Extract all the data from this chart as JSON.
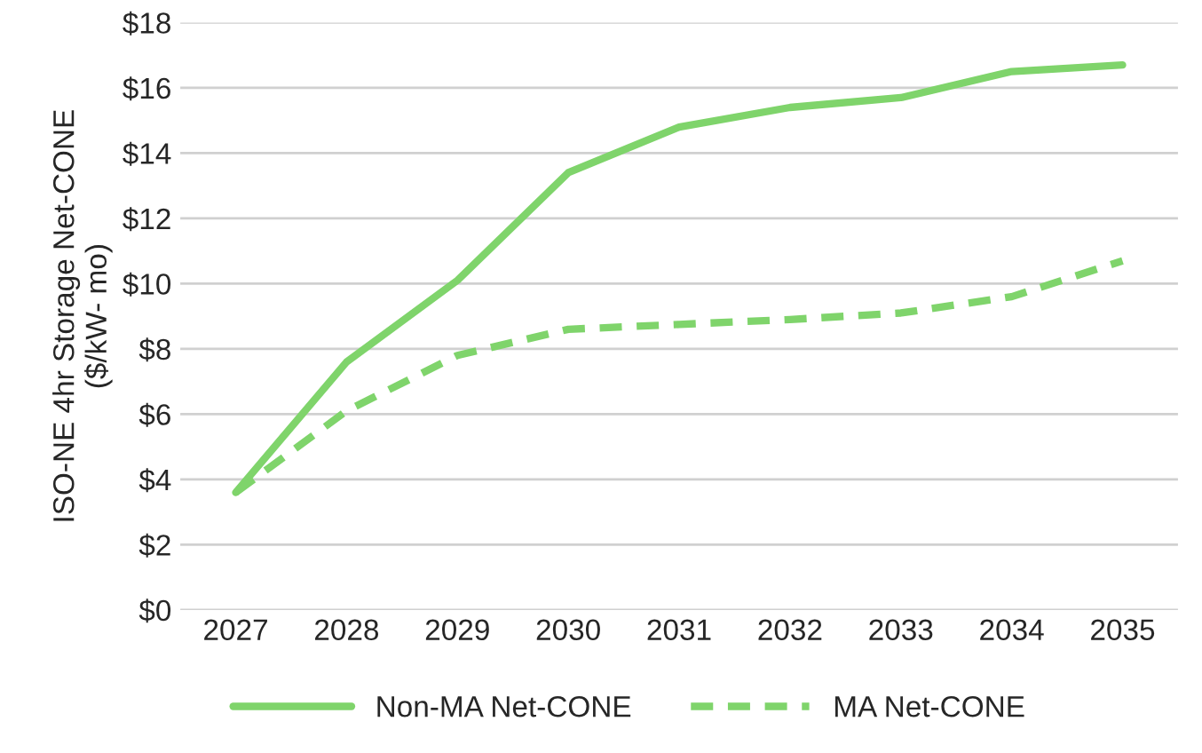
{
  "chart_data": {
    "type": "line",
    "ylabel": "ISO-NE 4hr Storage Net-CONE\n($/kW- mo)",
    "categories": [
      "2027",
      "2028",
      "2029",
      "2030",
      "2031",
      "2032",
      "2033",
      "2034",
      "2035"
    ],
    "series": [
      {
        "name": "Non-MA Net-CONE",
        "color": "#7fd46b",
        "line_style": "solid",
        "values": [
          3.6,
          7.6,
          10.1,
          13.4,
          14.8,
          15.4,
          15.7,
          16.5,
          16.7
        ]
      },
      {
        "name": "MA Net-CONE",
        "color": "#7fd46b",
        "line_style": "dashed",
        "values": [
          3.6,
          6.1,
          7.8,
          8.6,
          8.75,
          8.9,
          9.1,
          9.6,
          10.7
        ]
      }
    ],
    "ylim": [
      0,
      18
    ],
    "yticks": [
      {
        "value": 0,
        "label": "$0"
      },
      {
        "value": 2,
        "label": "$2"
      },
      {
        "value": 4,
        "label": "$4"
      },
      {
        "value": 6,
        "label": "$6"
      },
      {
        "value": 8,
        "label": "$8"
      },
      {
        "value": 10,
        "label": "$10"
      },
      {
        "value": 12,
        "label": "$12"
      },
      {
        "value": 14,
        "label": "$14"
      },
      {
        "value": 16,
        "label": "$16"
      },
      {
        "value": 18,
        "label": "$18"
      }
    ],
    "grid": "y",
    "legend": "bottom",
    "marker": "none"
  }
}
